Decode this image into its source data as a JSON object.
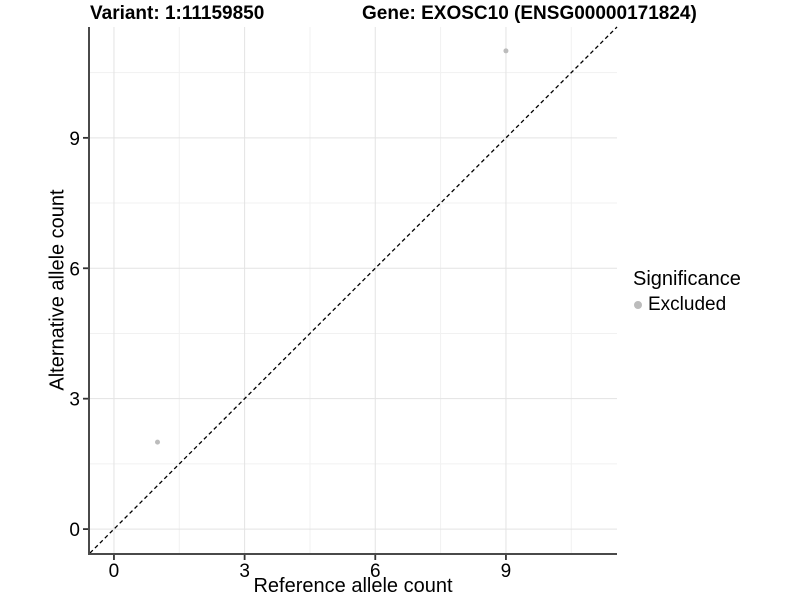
{
  "chart_data": {
    "type": "scatter",
    "title_left": "Variant: 1:11159850",
    "title_right": "Gene: EXOSC10 (ENSG00000171824)",
    "xlabel": "Reference allele count",
    "ylabel": "Alternative allele count",
    "xlim": [
      -0.55,
      11.55
    ],
    "ylim": [
      -0.55,
      11.55
    ],
    "x_ticks": [
      0,
      3,
      6,
      9
    ],
    "y_ticks": [
      0,
      3,
      6,
      9
    ],
    "x_minor": [
      1.5,
      4.5,
      7.5,
      10.5
    ],
    "y_minor": [
      1.5,
      4.5,
      7.5,
      10.5
    ],
    "grid": true,
    "legend_position": "right",
    "legend": {
      "title": "Significance",
      "items": [
        {
          "label": "Excluded",
          "color": "#bcbcbc"
        }
      ]
    },
    "series": [
      {
        "name": "Excluded",
        "color": "#bcbcbc",
        "points": [
          [
            1,
            2
          ],
          [
            9,
            11
          ]
        ]
      }
    ],
    "reference_line": {
      "slope": 1,
      "intercept": 0,
      "linetype": "dashed",
      "color": "#000000"
    },
    "style": {
      "grid_major": "#e3e3e3",
      "grid_minor": "#f1f1f1",
      "axis_line": "#4a4a4a",
      "tick_color": "#333333",
      "point_radius": 2.5
    }
  }
}
